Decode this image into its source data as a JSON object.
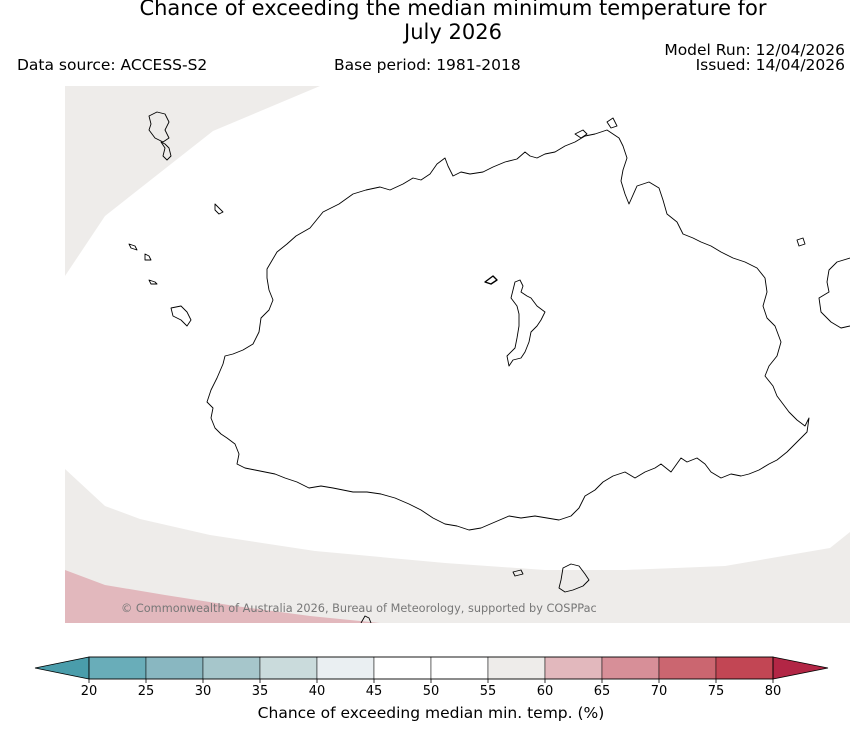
{
  "title": {
    "line1": "Chance of exceeding the median minimum temperature for",
    "line2": "July 2026"
  },
  "meta": {
    "data_source": "Data source: ACCESS-S2",
    "base_period": "Base period: 1981-2018",
    "model_run": "Model Run: 12/04/2026",
    "issued": "Issued: 14/04/2026"
  },
  "map": {
    "attribution": "© Commonwealth of Australia 2026, Bureau of Meteorology, supported by COSPPac",
    "region_categories": {
      "background": "45-55",
      "north_west_band": "55-60",
      "south_band": "55-60",
      "south_west_corner": "60-65"
    }
  },
  "colorbar": {
    "label": "Chance of exceeding median min. temp. (%)",
    "ticks": [
      "20",
      "25",
      "30",
      "35",
      "40",
      "45",
      "50",
      "55",
      "60",
      "65",
      "70",
      "75",
      "80"
    ],
    "extend_low_color": "#4a9dab",
    "extend_high_color": "#b22645",
    "bin_colors": [
      "#69adb9",
      "#89b7c1",
      "#a6c6cb",
      "#cadbdc",
      "#eaeff2",
      "#ffffff",
      "#ffffff",
      "#eeecea",
      "#e2b8bd",
      "#d78f98",
      "#cb6670",
      "#c24654"
    ]
  },
  "colors": {
    "land_outline": "#000000",
    "category_55_60": "#eeecea",
    "category_60_65": "#e2b8bd",
    "attribution_text": "#777777"
  }
}
